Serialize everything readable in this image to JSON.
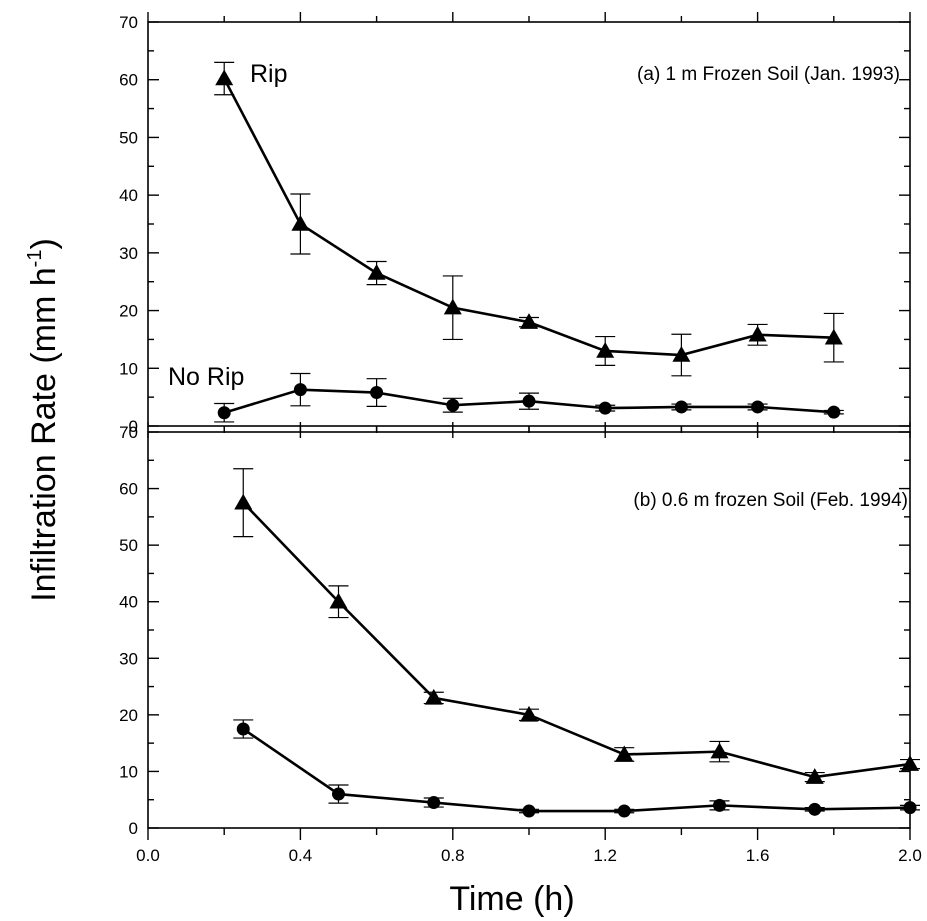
{
  "chart_data": [
    {
      "type": "line",
      "annotation": "(a) 1 m Frozen Soil (Jan. 1993)",
      "ylim": [
        0,
        70
      ],
      "yticks": [
        0,
        10,
        20,
        30,
        40,
        50,
        60,
        70
      ],
      "series": [
        {
          "name": "Rip",
          "marker": "triangle",
          "x": [
            0.2,
            0.4,
            0.6,
            0.8,
            1.0,
            1.2,
            1.4,
            1.6,
            1.8
          ],
          "values": [
            60.2,
            35,
            26.5,
            20.5,
            18,
            13,
            12.3,
            15.8,
            15.3
          ],
          "err": [
            2.8,
            5.2,
            2.0,
            5.5,
            0.8,
            2.5,
            3.6,
            1.8,
            4.2
          ]
        },
        {
          "name": "No Rip",
          "marker": "circle",
          "x": [
            0.2,
            0.4,
            0.6,
            0.8,
            1.0,
            1.2,
            1.4,
            1.6,
            1.8
          ],
          "values": [
            2.3,
            6.3,
            5.8,
            3.6,
            4.3,
            3.1,
            3.3,
            3.3,
            2.4
          ],
          "err": [
            1.6,
            2.8,
            2.4,
            1.2,
            1.4,
            0.5,
            0.5,
            0.5,
            0.3
          ]
        }
      ]
    },
    {
      "type": "line",
      "annotation": "(b) 0.6 m frozen Soil (Feb. 1994)",
      "ylim": [
        0,
        70
      ],
      "yticks": [
        0,
        10,
        20,
        30,
        40,
        50,
        60,
        70
      ],
      "xticks": [
        "0.0",
        "0.4",
        "0.8",
        "1.2",
        "1.6",
        "2.0"
      ],
      "series": [
        {
          "marker": "triangle",
          "x": [
            0.25,
            0.5,
            0.75,
            1.0,
            1.25,
            1.5,
            1.75,
            2.0
          ],
          "values": [
            57.5,
            40,
            23,
            20,
            13,
            13.5,
            9,
            11.3
          ],
          "err": [
            6.0,
            2.8,
            1.0,
            1.0,
            1.2,
            1.8,
            0.8,
            0.8
          ]
        },
        {
          "marker": "circle",
          "x": [
            0.25,
            0.5,
            0.75,
            1.0,
            1.25,
            1.5,
            1.75,
            2.0
          ],
          "values": [
            17.5,
            6,
            4.5,
            3,
            3,
            4,
            3.3,
            3.6
          ],
          "err": [
            1.6,
            1.6,
            0.8,
            0.3,
            0.3,
            0.8,
            0.3,
            0.4
          ]
        }
      ]
    }
  ],
  "axes": {
    "xlabel": "Time (h)",
    "xlim": [
      0.0,
      2.0
    ],
    "ylabel_main": "Infiltration Rate (mm h",
    "ylabel_sup": "-1",
    "ylabel_end": ")"
  }
}
